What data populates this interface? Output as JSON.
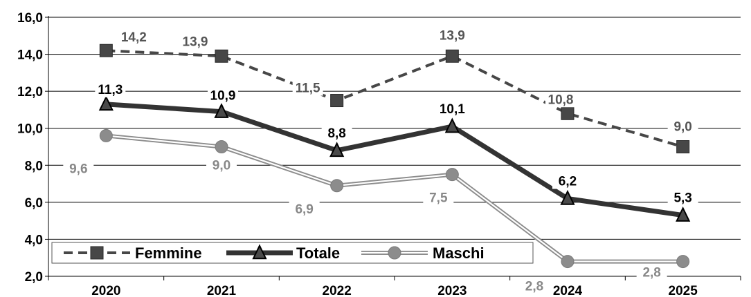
{
  "chart_data": {
    "type": "line",
    "title": "",
    "xlabel": "",
    "ylabel": "",
    "categories": [
      "2020",
      "2021",
      "2022",
      "2023",
      "2024",
      "2025"
    ],
    "ylim": [
      2.0,
      16.0
    ],
    "yticks": [
      "2,0",
      "4,0",
      "6,0",
      "8,0",
      "10,0",
      "12,0",
      "14,0",
      "16,0"
    ],
    "grid": true,
    "legend_position": "bottom-left",
    "series": [
      {
        "name": "Femmine",
        "values": [
          14.2,
          13.9,
          11.5,
          13.9,
          10.8,
          9.0
        ],
        "labels": [
          "14,2",
          "13,9",
          "11,5",
          "13,9",
          "10,8",
          "9,0"
        ],
        "color": "#474747",
        "label_color": "#555555",
        "marker": "square",
        "style": "dashed"
      },
      {
        "name": "Totale",
        "values": [
          11.3,
          10.9,
          8.8,
          10.1,
          6.2,
          5.3
        ],
        "labels": [
          "11,3",
          "10,9",
          "8,8",
          "10,1",
          "6,2",
          "5,3"
        ],
        "color": "#333333",
        "label_color": "#000000",
        "marker": "triangle",
        "style": "solid-thick"
      },
      {
        "name": "Maschi",
        "values": [
          9.6,
          9.0,
          6.9,
          7.5,
          2.8,
          2.8
        ],
        "labels": [
          "9,6",
          "9,0",
          "6,9",
          "7,5",
          "2,8",
          "2,8"
        ],
        "color": "#8c8c8c",
        "label_color": "#888888",
        "marker": "circle",
        "style": "double"
      }
    ]
  }
}
